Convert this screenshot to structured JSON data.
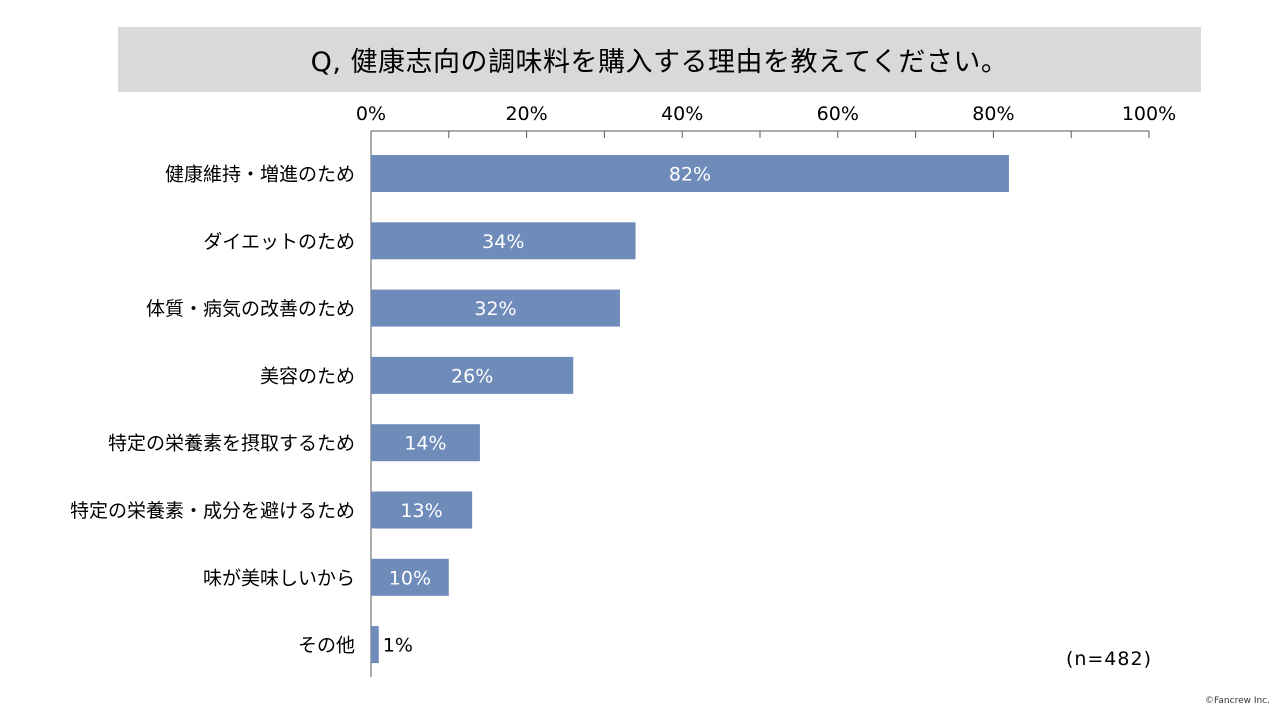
{
  "slide": {
    "question": "Q, 健康志向の調味料を購入する理由を教えてください。",
    "sample_size": "(n=482)",
    "copyright": "©Fancrew Inc."
  },
  "colors": {
    "bar": "#6f8bb9",
    "title_bg": "#d9d9d9",
    "axis": "#595959",
    "bar_label_inside": "#ffffff",
    "bar_label_outside": "#000000"
  },
  "chart_data": {
    "type": "bar",
    "orientation": "horizontal",
    "categories": [
      "健康維持・増進のため",
      "ダイエットのため",
      "体質・病気の改善のため",
      "美容のため",
      "特定の栄養素を摂取するため",
      "特定の栄養素・成分を避けるため",
      "味が美味しいから",
      "その他"
    ],
    "values": [
      82,
      34,
      32,
      26,
      14,
      13,
      10,
      1
    ],
    "value_labels": [
      "82%",
      "34%",
      "32%",
      "26%",
      "14%",
      "13%",
      "10%",
      "1%"
    ],
    "xlim": [
      0,
      100
    ],
    "x_ticks": [
      0,
      20,
      40,
      60,
      80,
      100
    ],
    "x_tick_labels": [
      "0%",
      "20%",
      "40%",
      "60%",
      "80%",
      "100%"
    ],
    "minor_tick_step": 10,
    "x_axis_position": "top",
    "grid": false,
    "legend": false
  }
}
